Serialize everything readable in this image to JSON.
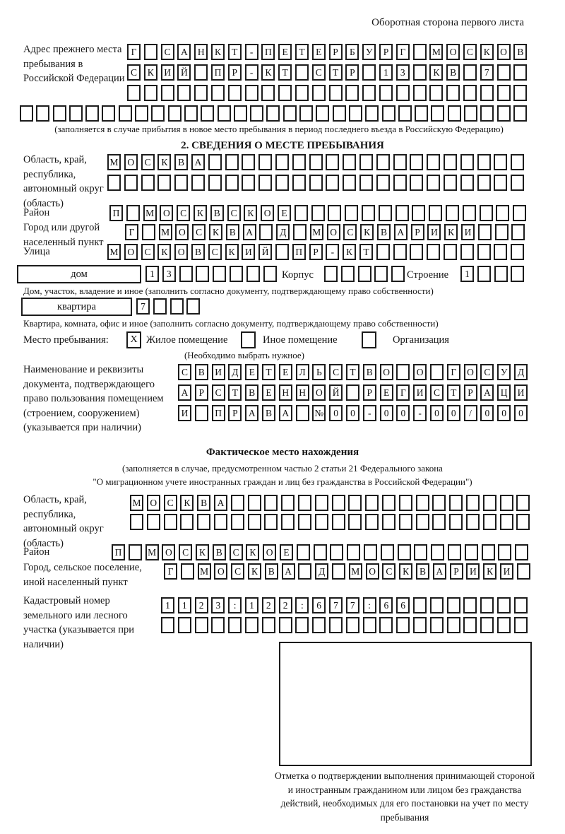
{
  "header": {
    "note": "Оборотная сторона первого листа"
  },
  "prev_address": {
    "label": "Адрес прежнего места пребывания в Российской Федерации",
    "rows": [
      {
        "chars": "Г САНКТ-ПЕТЕРБУРГ МОСКОВ",
        "len": 24
      },
      {
        "chars": "СКИЙ ПР-КТ СТР 13 КВ 7",
        "len": 24
      },
      {
        "chars": "",
        "len": 24
      },
      {
        "chars": "",
        "len": 31
      }
    ],
    "caption": "(заполняется в случае прибытия в новое место пребывания в период последнего въезда в Российскую Федерацию)"
  },
  "section2": {
    "title": "2. СВЕДЕНИЯ О МЕСТЕ ПРЕБЫВАНИЯ",
    "oblast": {
      "label": "Область, край, республика, автономный округ (область)",
      "rows": [
        {
          "chars": "МОСКВА",
          "len": 25
        },
        {
          "chars": "",
          "len": 25
        }
      ]
    },
    "rajon": {
      "label": "Район",
      "row": {
        "chars": "П МОСКВСКОЕ",
        "len": 25
      }
    },
    "gorod": {
      "label": "Город или другой населенный пункт",
      "row": {
        "chars": "Г МОСКВА Д МОСКВАРИКИ",
        "len": 24
      }
    },
    "ulica": {
      "label": "Улица",
      "row": {
        "chars": "МОСКОВСКИЙ ПР-КТ",
        "len": 25
      }
    },
    "dom": {
      "box_label": "дом",
      "row": {
        "chars": "13",
        "len": 8
      },
      "korpus_label": "Корпус",
      "korpus_row": {
        "chars": "",
        "len": 5
      },
      "stroenie_label": "Строение",
      "stroenie_row": {
        "chars": "1",
        "len": 4
      },
      "caption": "Дом, участок, владение и иное (заполнить согласно документу, подтверждающему право собственности)"
    },
    "kvartira": {
      "box_label": "квартира",
      "row": {
        "chars": "7",
        "len": 4
      },
      "caption": "Квартира, комната, офис и иное (заполнить согласно документу, подтверждающему право собственности)"
    },
    "place_type": {
      "label": "Место пребывания:",
      "options": [
        {
          "label": "Жилое помещение",
          "mark": "X"
        },
        {
          "label": "Иное помещение",
          "mark": ""
        },
        {
          "label": "Организация",
          "mark": ""
        }
      ],
      "note": "(Необходимо выбрать нужное)"
    },
    "document": {
      "label": "Наименование и реквизиты документа, подтверждающего право пользования помещением (строением, сооружением) (указывается при наличии)",
      "rows": [
        {
          "chars": "СВИДЕТЕЛЬСТВО О ГОСУД",
          "len": 21
        },
        {
          "chars": "АРСТВЕННОЙ РЕГИСТРАЦИ",
          "len": 21
        },
        {
          "chars": "И ПРАВА №00-00-00/000",
          "len": 21
        }
      ]
    }
  },
  "actual_location": {
    "title": "Фактическое место нахождения",
    "caption_line1": "(заполняется в случае, предусмотренном частью 2 статьи 21 Федерального закона",
    "caption_line2": "\"О миграционном учете иностранных граждан и лиц без гражданства в Российской Федерации\")",
    "oblast": {
      "label": "Область, край, республика, автономный округ (область)",
      "rows": [
        {
          "chars": "МОСКВА",
          "len": 24
        },
        {
          "chars": "",
          "len": 24
        }
      ]
    },
    "rajon": {
      "label": "Район",
      "row": {
        "chars": "П МОСКВСКОЕ",
        "len": 25
      }
    },
    "gorod": {
      "label": "Город, сельское поселение, иной населенный пункт",
      "row": {
        "chars": "Г МОСКВА Д МОСКВАРИКИ",
        "len": 22
      }
    },
    "kadastr": {
      "label": "Кадастровый номер земельного или лесного участка (указывается при наличии)",
      "rows": [
        {
          "chars": "1123:122:677:66",
          "len": 22
        },
        {
          "chars": "",
          "len": 22
        }
      ]
    }
  },
  "stamp": {
    "caption": "Отметка о подтверждении выполнения принимающей стороной и иностранным гражданином или лицом без гражданства действий, необходимых для его постановки на учет по месту пребывания"
  }
}
